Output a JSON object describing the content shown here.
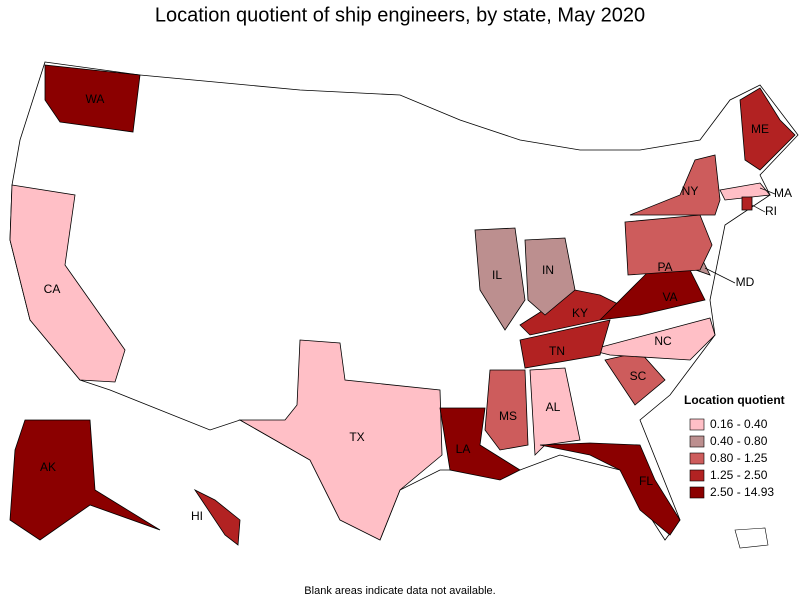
{
  "title": "Location quotient of ship engineers, by state, May 2020",
  "legend": {
    "title": "Location quotient",
    "items": [
      {
        "label": "0.16 - 0.40",
        "color": "#ffbfc6"
      },
      {
        "label": "0.40 - 0.80",
        "color": "#bc8f8f"
      },
      {
        "label": "0.80 - 1.25",
        "color": "#cd5c5c"
      },
      {
        "label": "1.25 - 2.50",
        "color": "#b22222"
      },
      {
        "label": "2.50 - 14.93",
        "color": "#8b0000"
      }
    ]
  },
  "states": [
    {
      "label": "WA",
      "class": 4
    },
    {
      "label": "CA",
      "class": 0
    },
    {
      "label": "TX",
      "class": 0
    },
    {
      "label": "AK",
      "class": 4
    },
    {
      "label": "HI",
      "class": 3
    },
    {
      "label": "LA",
      "class": 4
    },
    {
      "label": "MS",
      "class": 2
    },
    {
      "label": "AL",
      "class": 0
    },
    {
      "label": "FL",
      "class": 4
    },
    {
      "label": "SC",
      "class": 2
    },
    {
      "label": "NC",
      "class": 0
    },
    {
      "label": "TN",
      "class": 3
    },
    {
      "label": "KY",
      "class": 3
    },
    {
      "label": "VA",
      "class": 4
    },
    {
      "label": "MD",
      "class": 1
    },
    {
      "label": "IL",
      "class": 1
    },
    {
      "label": "IN",
      "class": 1
    },
    {
      "label": "PA",
      "class": 2
    },
    {
      "label": "NY",
      "class": 2
    },
    {
      "label": "ME",
      "class": 3
    },
    {
      "label": "MA",
      "class": 0
    },
    {
      "label": "RI",
      "class": 3
    }
  ],
  "footnote": "Blank areas indicate data not available."
}
